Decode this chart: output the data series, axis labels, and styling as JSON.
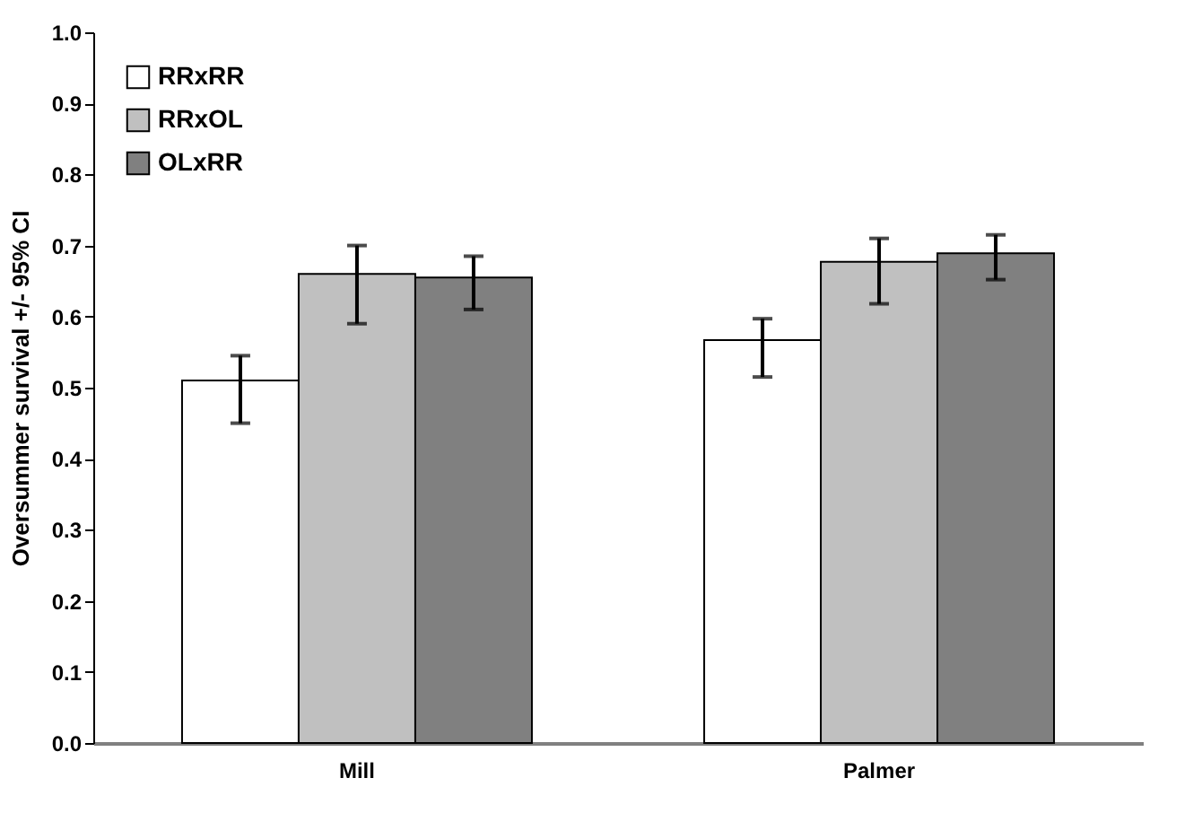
{
  "chart_data": {
    "type": "bar",
    "ylabel": "Oversummer survival +/- 95% CI",
    "categories": [
      "Mill",
      "Palmer"
    ],
    "series": [
      {
        "name": "RRxRR",
        "color": "#ffffff",
        "values": [
          0.51,
          0.567
        ],
        "errors": [
          [
            0.45,
            0.545
          ],
          [
            0.515,
            0.597
          ]
        ]
      },
      {
        "name": "RRxOL",
        "color": "#c0c0c0",
        "values": [
          0.66,
          0.677
        ],
        "errors": [
          [
            0.59,
            0.7
          ],
          [
            0.618,
            0.71
          ]
        ]
      },
      {
        "name": "OLxRR",
        "color": "#808080",
        "values": [
          0.655,
          0.689
        ],
        "errors": [
          [
            0.61,
            0.685
          ],
          [
            0.652,
            0.715
          ]
        ]
      }
    ],
    "ylim": [
      0,
      1.0
    ],
    "yticks": [
      {
        "value": 0,
        "label": "0.0"
      },
      0.1,
      0.2,
      0.3,
      0.4,
      0.5,
      0.6,
      0.7,
      0.8,
      0.9,
      {
        "value": 1,
        "label": "1.0"
      }
    ],
    "grid": false,
    "legend": "top left"
  }
}
